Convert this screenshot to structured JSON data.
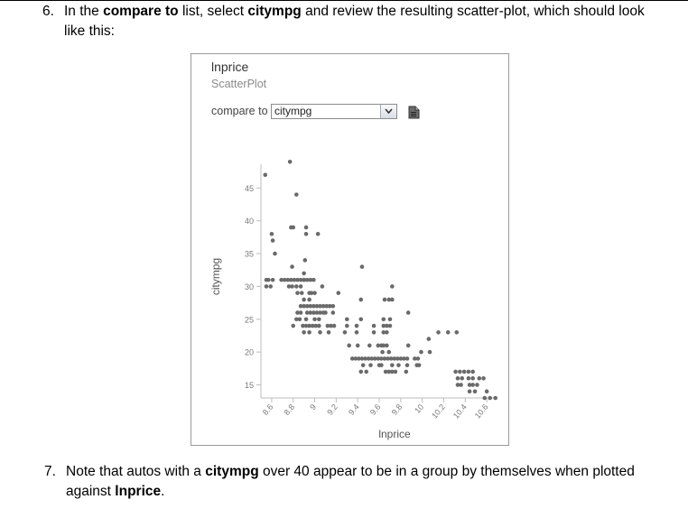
{
  "step6": {
    "number": "6.",
    "lead": "In the ",
    "bold1": "compare to",
    "mid": " list, select ",
    "bold2": "citympg",
    "tail": " and review the resulting scatter-plot, which should look",
    "line2": "like this:"
  },
  "panel": {
    "title": "lnprice",
    "subtitle": "ScatterPlot",
    "compare_label": "compare to",
    "compare_value": "citympg",
    "icons": {
      "dropdown": "chevron-down-icon",
      "document": "document-icon"
    }
  },
  "chart_data": {
    "type": "scatter",
    "xlabel": "lnprice",
    "ylabel": "citympg",
    "xlim": [
      8.5,
      10.75
    ],
    "ylim": [
      13,
      50
    ],
    "x_ticks": [
      8.6,
      8.8,
      9,
      9.2,
      9.4,
      9.6,
      9.8,
      10,
      10.2,
      10.4,
      10.6
    ],
    "y_ticks": [
      15,
      20,
      25,
      30,
      35,
      40,
      45
    ],
    "x_tick_labels": [
      "8.6",
      "8.8",
      "9",
      "9.2",
      "9.4",
      "9.6",
      "9.8",
      "10",
      "10.2",
      "10.4",
      "10.6"
    ],
    "y_tick_labels": [
      "15",
      "20",
      "25",
      "30",
      "35",
      "40",
      "45"
    ],
    "grid": false,
    "points": [
      [
        8.54,
        47
      ],
      [
        8.77,
        49
      ],
      [
        8.83,
        44
      ],
      [
        8.79,
        33
      ],
      [
        8.57,
        31
      ],
      [
        8.59,
        30
      ],
      [
        8.61,
        31
      ],
      [
        8.63,
        35
      ],
      [
        8.6,
        38
      ],
      [
        8.61,
        37
      ],
      [
        8.55,
        31
      ],
      [
        8.55,
        30
      ],
      [
        8.78,
        39
      ],
      [
        8.8,
        39
      ],
      [
        8.92,
        39
      ],
      [
        8.92,
        38
      ],
      [
        9.03,
        38
      ],
      [
        8.69,
        31
      ],
      [
        8.72,
        31
      ],
      [
        8.75,
        31
      ],
      [
        8.78,
        31
      ],
      [
        8.81,
        31
      ],
      [
        8.84,
        31
      ],
      [
        8.87,
        31
      ],
      [
        8.9,
        31
      ],
      [
        8.93,
        31
      ],
      [
        8.96,
        31
      ],
      [
        8.99,
        31
      ],
      [
        8.76,
        30
      ],
      [
        8.79,
        30
      ],
      [
        8.83,
        30
      ],
      [
        8.87,
        30
      ],
      [
        8.9,
        31
      ],
      [
        8.9,
        32
      ],
      [
        8.91,
        34
      ],
      [
        8.84,
        29
      ],
      [
        8.88,
        29
      ],
      [
        8.95,
        29
      ],
      [
        8.97,
        29
      ],
      [
        9.0,
        29
      ],
      [
        8.9,
        28
      ],
      [
        8.95,
        28
      ],
      [
        9.07,
        30
      ],
      [
        8.87,
        27
      ],
      [
        8.9,
        27
      ],
      [
        8.93,
        27
      ],
      [
        8.96,
        27
      ],
      [
        8.99,
        27
      ],
      [
        9.02,
        27
      ],
      [
        9.05,
        27
      ],
      [
        9.08,
        27
      ],
      [
        9.11,
        27
      ],
      [
        9.14,
        27
      ],
      [
        9.17,
        27
      ],
      [
        8.84,
        26
      ],
      [
        8.87,
        26
      ],
      [
        8.93,
        26
      ],
      [
        8.96,
        26
      ],
      [
        8.99,
        26
      ],
      [
        9.02,
        26
      ],
      [
        9.05,
        26
      ],
      [
        9.08,
        26
      ],
      [
        9.1,
        26
      ],
      [
        9.17,
        26
      ],
      [
        8.83,
        25
      ],
      [
        8.86,
        25
      ],
      [
        8.92,
        25
      ],
      [
        9.0,
        25
      ],
      [
        9.04,
        25
      ],
      [
        8.8,
        24
      ],
      [
        8.89,
        24
      ],
      [
        8.92,
        24
      ],
      [
        8.95,
        24
      ],
      [
        8.98,
        24
      ],
      [
        9.01,
        24
      ],
      [
        9.04,
        24
      ],
      [
        9.12,
        24
      ],
      [
        9.15,
        24
      ],
      [
        9.18,
        24
      ],
      [
        9.3,
        24
      ],
      [
        9.39,
        24
      ],
      [
        9.55,
        24
      ],
      [
        9.64,
        24
      ],
      [
        9.67,
        24
      ],
      [
        9.7,
        24
      ],
      [
        8.9,
        23
      ],
      [
        8.95,
        23
      ],
      [
        9.05,
        23
      ],
      [
        9.13,
        23
      ],
      [
        9.28,
        23
      ],
      [
        9.39,
        23
      ],
      [
        9.55,
        23
      ],
      [
        9.64,
        23
      ],
      [
        9.67,
        23
      ],
      [
        9.3,
        25
      ],
      [
        9.43,
        25
      ],
      [
        9.64,
        25
      ],
      [
        9.7,
        25
      ],
      [
        9.43,
        28
      ],
      [
        9.65,
        28
      ],
      [
        9.69,
        28
      ],
      [
        9.72,
        28
      ],
      [
        9.72,
        30
      ],
      [
        9.44,
        33
      ],
      [
        9.87,
        26
      ],
      [
        9.22,
        29
      ],
      [
        9.4,
        21
      ],
      [
        9.51,
        21
      ],
      [
        9.59,
        21
      ],
      [
        9.62,
        21
      ],
      [
        9.64,
        21
      ],
      [
        9.67,
        21
      ],
      [
        9.87,
        21
      ],
      [
        9.63,
        20
      ],
      [
        9.69,
        20
      ],
      [
        9.32,
        21
      ],
      [
        9.35,
        19
      ],
      [
        9.38,
        19
      ],
      [
        9.41,
        19
      ],
      [
        9.44,
        19
      ],
      [
        9.47,
        19
      ],
      [
        9.5,
        19
      ],
      [
        9.53,
        19
      ],
      [
        9.56,
        19
      ],
      [
        9.59,
        19
      ],
      [
        9.62,
        19
      ],
      [
        9.65,
        19
      ],
      [
        9.68,
        19
      ],
      [
        9.71,
        19
      ],
      [
        9.74,
        19
      ],
      [
        9.77,
        19
      ],
      [
        9.8,
        19
      ],
      [
        9.83,
        19
      ],
      [
        9.86,
        19
      ],
      [
        9.93,
        19
      ],
      [
        9.96,
        19
      ],
      [
        9.45,
        18
      ],
      [
        9.52,
        18
      ],
      [
        9.6,
        18
      ],
      [
        9.62,
        18
      ],
      [
        9.72,
        18
      ],
      [
        9.78,
        18
      ],
      [
        9.86,
        18
      ],
      [
        9.95,
        18
      ],
      [
        9.97,
        18
      ],
      [
        9.43,
        17
      ],
      [
        9.48,
        17
      ],
      [
        9.66,
        17
      ],
      [
        9.69,
        17
      ],
      [
        9.72,
        17
      ],
      [
        9.75,
        17
      ],
      [
        9.85,
        17
      ],
      [
        9.99,
        20
      ],
      [
        10.06,
        22
      ],
      [
        10.07,
        20
      ],
      [
        10.15,
        23
      ],
      [
        10.24,
        23
      ],
      [
        10.32,
        23
      ],
      [
        10.31,
        17
      ],
      [
        10.35,
        17
      ],
      [
        10.39,
        17
      ],
      [
        10.43,
        17
      ],
      [
        10.47,
        17
      ],
      [
        10.33,
        16
      ],
      [
        10.37,
        16
      ],
      [
        10.43,
        16
      ],
      [
        10.47,
        16
      ],
      [
        10.33,
        15
      ],
      [
        10.36,
        15
      ],
      [
        10.44,
        15
      ],
      [
        10.47,
        15
      ],
      [
        10.51,
        15
      ],
      [
        10.44,
        14
      ],
      [
        10.49,
        14
      ],
      [
        10.53,
        16
      ],
      [
        10.57,
        16
      ],
      [
        10.58,
        13
      ],
      [
        10.63,
        13
      ],
      [
        10.6,
        14
      ],
      [
        10.68,
        13
      ]
    ]
  },
  "step7": {
    "number": "7.",
    "lead": "Note that autos with a ",
    "bold1": "citympg",
    "tail": " over 40 appear to be in a group by themselves when plotted",
    "line2_lead": "against ",
    "bold2": "lnprice",
    "line2_tail": "."
  }
}
